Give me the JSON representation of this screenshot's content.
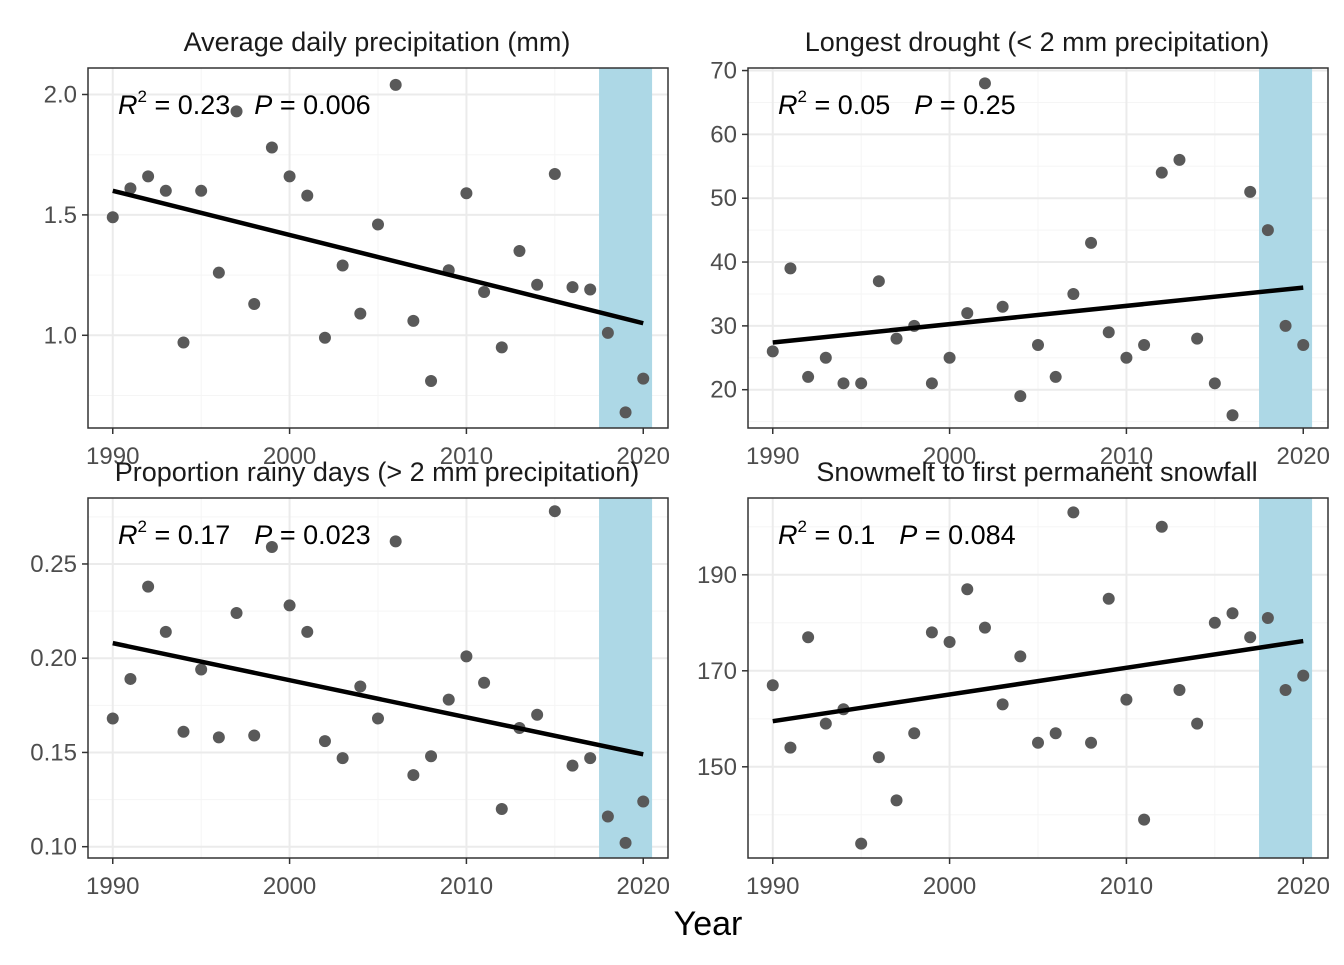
{
  "figure": {
    "xlabel": "Year",
    "background": "#ffffff",
    "panel_border": "#333333",
    "grid_major": "#ebebeb",
    "grid_minor": "#f5f5f5",
    "point_color": "#595959",
    "line_color": "#000000",
    "highlight_color": "#add8e6"
  },
  "chart_data": [
    {
      "type": "scatter",
      "title": "Average daily precipitation (mm)",
      "xlim": [
        1988.6,
        2021.4
      ],
      "ylim": [
        0.615,
        2.11
      ],
      "xticks": [
        1990,
        2000,
        2010,
        2020
      ],
      "yticks": [
        1.0,
        1.5,
        2.0
      ],
      "ytick_labels": [
        "1.0",
        "1.5",
        "2.0"
      ],
      "highlight_x": [
        2017.5,
        2020.5
      ],
      "stats": {
        "r2_label": "R",
        "r2_exp": "2",
        "r2_value": " = 0.23",
        "p_label": "P",
        "p_value": " = 0.006"
      },
      "x": [
        1990,
        1991,
        1992,
        1993,
        1994,
        1995,
        1996,
        1997,
        1998,
        1999,
        2000,
        2001,
        2002,
        2003,
        2004,
        2005,
        2006,
        2007,
        2008,
        2009,
        2010,
        2011,
        2012,
        2013,
        2014,
        2015,
        2016,
        2017,
        2018,
        2019,
        2020
      ],
      "y": [
        1.49,
        1.61,
        1.66,
        1.6,
        0.97,
        1.6,
        1.26,
        1.93,
        1.13,
        1.78,
        1.66,
        1.58,
        0.99,
        1.29,
        1.09,
        1.46,
        2.04,
        1.06,
        0.81,
        1.27,
        1.59,
        1.18,
        0.95,
        1.35,
        1.21,
        1.67,
        1.2,
        1.19,
        1.01,
        0.68,
        0.82
      ],
      "trend": {
        "x": [
          1990,
          2020
        ],
        "y": [
          1.6,
          1.05
        ]
      }
    },
    {
      "type": "scatter",
      "title": "Longest drought (< 2 mm precipitation)",
      "xlim": [
        1988.6,
        2021.4
      ],
      "ylim": [
        14,
        70.4
      ],
      "xticks": [
        1990,
        2000,
        2010,
        2020
      ],
      "yticks": [
        20,
        30,
        40,
        50,
        60,
        70
      ],
      "ytick_labels": [
        "20",
        "30",
        "40",
        "50",
        "60",
        "70"
      ],
      "highlight_x": [
        2017.5,
        2020.5
      ],
      "stats": {
        "r2_label": "R",
        "r2_exp": "2",
        "r2_value": " = 0.05",
        "p_label": "P",
        "p_value": " = 0.25"
      },
      "x": [
        1990,
        1991,
        1992,
        1993,
        1994,
        1995,
        1996,
        1997,
        1998,
        1999,
        2000,
        2001,
        2002,
        2003,
        2004,
        2005,
        2006,
        2007,
        2008,
        2009,
        2010,
        2011,
        2012,
        2013,
        2014,
        2015,
        2016,
        2017,
        2018,
        2019,
        2020
      ],
      "y": [
        26,
        39,
        22,
        25,
        21,
        21,
        37,
        28,
        30,
        21,
        25,
        32,
        68,
        33,
        19,
        27,
        22,
        35,
        43,
        29,
        25,
        27,
        54,
        56,
        28,
        21,
        16,
        51,
        45,
        30,
        27
      ],
      "trend": {
        "x": [
          1990,
          2020
        ],
        "y": [
          27.4,
          36.0
        ]
      }
    },
    {
      "type": "scatter",
      "title": "Proportion rainy days (> 2 mm precipitation)",
      "xlim": [
        1988.6,
        2021.4
      ],
      "ylim": [
        0.094,
        0.285
      ],
      "xticks": [
        1990,
        2000,
        2010,
        2020
      ],
      "yticks": [
        0.1,
        0.15,
        0.2,
        0.25
      ],
      "ytick_labels": [
        "0.10",
        "0.15",
        "0.20",
        "0.25"
      ],
      "highlight_x": [
        2017.5,
        2020.5
      ],
      "stats": {
        "r2_label": "R",
        "r2_exp": "2",
        "r2_value": " = 0.17",
        "p_label": "P",
        "p_value": " = 0.023"
      },
      "x": [
        1990,
        1991,
        1992,
        1993,
        1994,
        1995,
        1996,
        1997,
        1998,
        1999,
        2000,
        2001,
        2002,
        2003,
        2004,
        2005,
        2006,
        2007,
        2008,
        2009,
        2010,
        2011,
        2012,
        2013,
        2014,
        2015,
        2016,
        2017,
        2018,
        2019,
        2020
      ],
      "y": [
        0.168,
        0.189,
        0.238,
        0.214,
        0.161,
        0.194,
        0.158,
        0.224,
        0.159,
        0.259,
        0.228,
        0.214,
        0.156,
        0.147,
        0.185,
        0.168,
        0.262,
        0.138,
        0.148,
        0.178,
        0.201,
        0.187,
        0.12,
        0.163,
        0.17,
        0.278,
        0.143,
        0.147,
        0.116,
        0.102,
        0.124
      ],
      "trend": {
        "x": [
          1990,
          2020
        ],
        "y": [
          0.208,
          0.149
        ]
      }
    },
    {
      "type": "scatter",
      "title": "Snowmelt to first permanent snowfall",
      "xlim": [
        1988.6,
        2021.4
      ],
      "ylim": [
        131,
        206
      ],
      "xticks": [
        1990,
        2000,
        2010,
        2020
      ],
      "yticks": [
        150,
        170,
        190
      ],
      "ytick_labels": [
        "150",
        "170",
        "190"
      ],
      "highlight_x": [
        2017.5,
        2020.5
      ],
      "stats": {
        "r2_label": "R",
        "r2_exp": "2",
        "r2_value": " = 0.1",
        "p_label": "P",
        "p_value": " = 0.084"
      },
      "x": [
        1990,
        1991,
        1992,
        1993,
        1994,
        1995,
        1996,
        1997,
        1998,
        1999,
        2000,
        2001,
        2002,
        2003,
        2004,
        2005,
        2006,
        2007,
        2008,
        2009,
        2010,
        2011,
        2012,
        2013,
        2014,
        2015,
        2016,
        2017,
        2018,
        2019,
        2020
      ],
      "y": [
        167,
        154,
        177,
        159,
        162,
        134,
        152,
        143,
        157,
        178,
        176,
        187,
        179,
        163,
        173,
        155,
        157,
        203,
        155,
        185,
        164,
        139,
        200,
        166,
        159,
        180,
        182,
        177,
        181,
        166,
        169
      ],
      "trend": {
        "x": [
          1990,
          2020
        ],
        "y": [
          159.5,
          176.2
        ]
      }
    }
  ]
}
